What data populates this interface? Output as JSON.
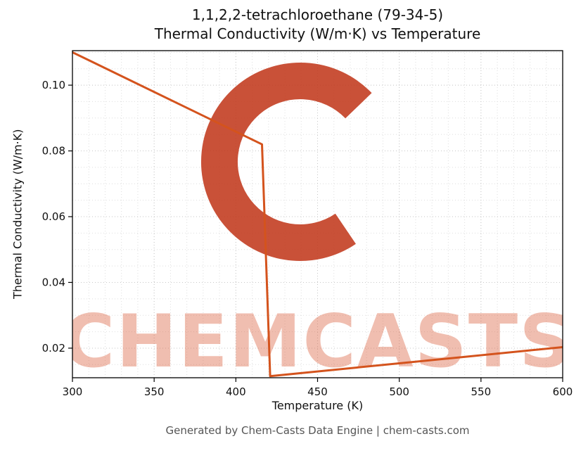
{
  "title": {
    "line1": "1,1,2,2-tetrachloroethane (79-34-5)",
    "line2": "Thermal Conductivity (W/m·K) vs Temperature"
  },
  "footer": {
    "text": "Generated by Chem-Casts Data Engine | chem-casts.com"
  },
  "watermark": {
    "text": "CHEMCASTS",
    "logo": "c-swirl-brushstroke",
    "text_color": "#dd6644",
    "logo_color": "#c1391c"
  },
  "chart_data": {
    "type": "line",
    "title": "1,1,2,2-tetrachloroethane (79-34-5) — Thermal Conductivity (W/m·K) vs Temperature",
    "xlabel": "Temperature (K)",
    "ylabel": "Thermal Conductivity (W/m·K)",
    "xlim": [
      300,
      600
    ],
    "ylim": [
      0.011,
      0.1105
    ],
    "x_ticks": [
      300,
      350,
      400,
      450,
      500,
      550,
      600
    ],
    "x_tick_labels": [
      "300",
      "350",
      "400",
      "450",
      "500",
      "550",
      "600"
    ],
    "y_ticks": [
      0.02,
      0.04,
      0.06,
      0.08,
      0.1
    ],
    "y_tick_labels": [
      "0.02",
      "0.04",
      "0.06",
      "0.08",
      "0.10"
    ],
    "x_minor_step": 10,
    "y_minor_step": 0.005,
    "grid": true,
    "minor_grid": true,
    "legend": false,
    "line_color": "#d4531d",
    "series": [
      {
        "name": "thermal-conductivity",
        "x": [
          300,
          416,
          421,
          600
        ],
        "y": [
          0.11,
          0.082,
          0.0115,
          0.0203
        ]
      }
    ]
  }
}
